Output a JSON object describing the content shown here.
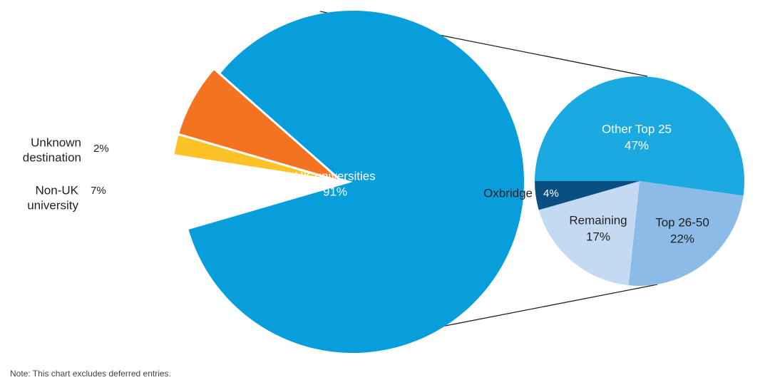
{
  "chart_data": [
    {
      "type": "pie",
      "slices": [
        {
          "key": "uk",
          "label": "UK universities",
          "value": 91,
          "value_label": "91%",
          "color": "#079edb"
        },
        {
          "key": "unknown",
          "label": "Unknown destination",
          "label_lines": [
            "Unknown",
            "destination"
          ],
          "value": 2,
          "value_label": "2%",
          "color": "#fdc228"
        },
        {
          "key": "nonuk",
          "label": "Non-UK university",
          "label_lines": [
            "Non-UK",
            "university"
          ],
          "value": 7,
          "value_label": "7%",
          "color": "#f37321"
        }
      ]
    },
    {
      "type": "pie",
      "breakdown_of": "UK universities",
      "slices": [
        {
          "key": "other25",
          "label": "Other Top 25",
          "value": 47,
          "value_label": "47%",
          "color": "#1ba9e1"
        },
        {
          "key": "top2650",
          "label": "Top 26-50",
          "value": 22,
          "value_label": "22%",
          "color": "#8bbbe6"
        },
        {
          "key": "remaining",
          "label": "Remaining",
          "value": 17,
          "value_label": "17%",
          "color": "#c4daf2"
        },
        {
          "key": "oxbridge",
          "label": "Oxbridge",
          "value": 4,
          "value_label": "4%",
          "color": "#0a4f82"
        }
      ]
    }
  ],
  "note": "Note: This chart excludes deferred entries."
}
